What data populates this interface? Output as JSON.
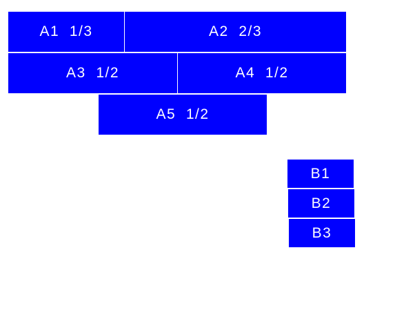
{
  "boxes_a": [
    {
      "label": "A1  1/3"
    },
    {
      "label": "A2  2/3"
    },
    {
      "label": "A3  1/2"
    },
    {
      "label": "A4  1/2"
    },
    {
      "label": "A5  1/2"
    }
  ],
  "boxes_b": [
    {
      "label": "B1"
    },
    {
      "label": "B2"
    },
    {
      "label": "B3"
    }
  ],
  "colors": {
    "box": "#0000ff",
    "text": "#ffffff"
  }
}
